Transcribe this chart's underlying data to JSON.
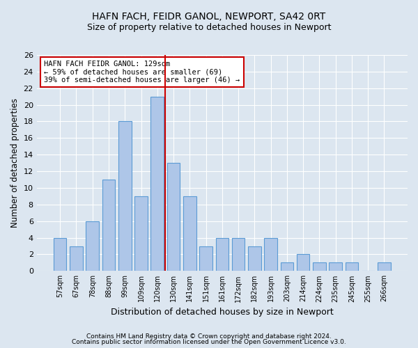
{
  "title": "HAFN FACH, FEIDR GANOL, NEWPORT, SA42 0RT",
  "subtitle": "Size of property relative to detached houses in Newport",
  "xlabel": "Distribution of detached houses by size in Newport",
  "ylabel": "Number of detached properties",
  "footnote1": "Contains HM Land Registry data © Crown copyright and database right 2024.",
  "footnote2": "Contains public sector information licensed under the Open Government Licence v3.0.",
  "categories": [
    "57sqm",
    "67sqm",
    "78sqm",
    "88sqm",
    "99sqm",
    "109sqm",
    "120sqm",
    "130sqm",
    "141sqm",
    "151sqm",
    "161sqm",
    "172sqm",
    "182sqm",
    "193sqm",
    "203sqm",
    "214sqm",
    "224sqm",
    "235sqm",
    "245sqm",
    "255sqm",
    "266sqm"
  ],
  "values": [
    4,
    3,
    6,
    11,
    18,
    9,
    21,
    13,
    9,
    3,
    4,
    4,
    3,
    4,
    1,
    2,
    1,
    1,
    1,
    0,
    1
  ],
  "bar_color": "#aec6e8",
  "bar_edge_color": "#5b9bd5",
  "vline_index": 6.5,
  "vline_color": "#cc0000",
  "annotation_title": "HAFN FACH FEIDR GANOL: 129sqm",
  "annotation_line1": "← 59% of detached houses are smaller (69)",
  "annotation_line2": "39% of semi-detached houses are larger (46) →",
  "annotation_box_color": "#ffffff",
  "annotation_box_edge_color": "#cc0000",
  "ylim": [
    0,
    26
  ],
  "yticks": [
    0,
    2,
    4,
    6,
    8,
    10,
    12,
    14,
    16,
    18,
    20,
    22,
    24,
    26
  ],
  "bg_color": "#dce6f0",
  "plot_bg_color": "#dce6f0",
  "title_fontsize": 10,
  "subtitle_fontsize": 9
}
